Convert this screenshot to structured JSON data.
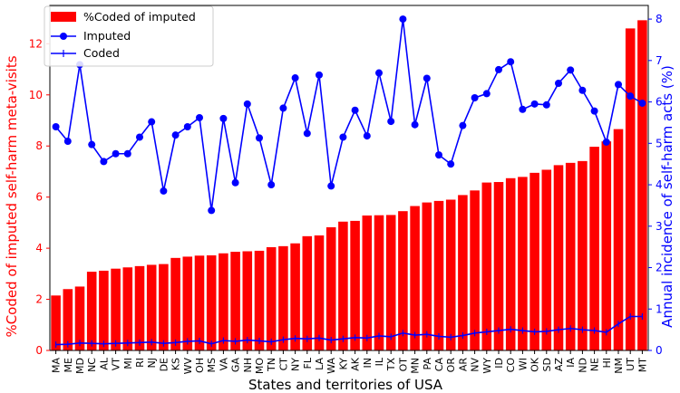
{
  "chart_data": {
    "type": "bar",
    "xlabel": "States and territories of USA",
    "ylabel_left": "%Coded of imputed self-harm meta-visits",
    "ylabel_right": "Annual incidence of self-harm acts (%)",
    "ylim_left": [
      0,
      13.5
    ],
    "ylim_right": [
      0,
      8.33
    ],
    "yticks_left": [
      0,
      2,
      4,
      6,
      8,
      10,
      12
    ],
    "yticks_right": [
      0,
      1,
      2,
      3,
      4,
      5,
      6,
      7,
      8
    ],
    "grid": false,
    "legend_position": "top-left",
    "colors": {
      "bar": "#ff0000",
      "line": "#0000ff",
      "left_axis": "#ff0000",
      "right_axis": "#0000ff"
    },
    "categories": [
      "MA",
      "ME",
      "MD",
      "NC",
      "AL",
      "VT",
      "MI",
      "RI",
      "NJ",
      "DE",
      "KS",
      "WV",
      "OH",
      "MS",
      "VA",
      "GA",
      "NH",
      "MO",
      "TN",
      "CT",
      "NY",
      "FL",
      "LA",
      "WA",
      "KY",
      "AK",
      "IN",
      "IL",
      "TX",
      "OT",
      "MN",
      "PA",
      "CA",
      "OR",
      "AR",
      "NV",
      "WY",
      "ID",
      "CO",
      "WI",
      "OK",
      "SD",
      "AZ",
      "IA",
      "ND",
      "NE",
      "HI",
      "NM",
      "UT",
      "MT"
    ],
    "series": [
      {
        "name": "%Coded of imputed",
        "kind": "bar",
        "axis": "left",
        "values": [
          2.15,
          2.4,
          2.5,
          3.08,
          3.12,
          3.2,
          3.25,
          3.3,
          3.35,
          3.38,
          3.62,
          3.67,
          3.71,
          3.72,
          3.8,
          3.86,
          3.88,
          3.9,
          4.04,
          4.08,
          4.19,
          4.47,
          4.5,
          4.82,
          5.04,
          5.07,
          5.28,
          5.29,
          5.3,
          5.45,
          5.65,
          5.79,
          5.85,
          5.9,
          6.08,
          6.26,
          6.57,
          6.59,
          6.74,
          6.79,
          6.95,
          7.07,
          7.25,
          7.34,
          7.41,
          7.97,
          8.18,
          8.66,
          12.6,
          12.92
        ]
      },
      {
        "name": "Imputed",
        "kind": "line-marker",
        "axis": "right",
        "values": [
          5.4,
          5.05,
          6.9,
          4.97,
          4.56,
          4.75,
          4.75,
          5.15,
          5.52,
          3.85,
          5.2,
          5.4,
          5.62,
          3.38,
          5.6,
          4.05,
          5.95,
          5.13,
          4.0,
          5.85,
          6.58,
          5.24,
          6.65,
          3.97,
          5.15,
          5.8,
          5.18,
          6.7,
          5.53,
          8.0,
          5.45,
          6.57,
          4.72,
          4.5,
          5.43,
          6.1,
          6.2,
          6.78,
          6.97,
          5.82,
          5.95,
          5.93,
          6.45,
          6.77,
          6.28,
          5.78,
          5.03,
          6.42,
          6.14,
          5.97
        ]
      },
      {
        "name": "Coded",
        "kind": "line-plus",
        "axis": "right",
        "values": [
          0.14,
          0.15,
          0.18,
          0.17,
          0.16,
          0.17,
          0.18,
          0.19,
          0.2,
          0.17,
          0.19,
          0.22,
          0.23,
          0.16,
          0.24,
          0.22,
          0.25,
          0.23,
          0.21,
          0.26,
          0.29,
          0.28,
          0.3,
          0.25,
          0.28,
          0.31,
          0.3,
          0.35,
          0.33,
          0.42,
          0.37,
          0.39,
          0.34,
          0.32,
          0.36,
          0.42,
          0.45,
          0.48,
          0.51,
          0.48,
          0.45,
          0.46,
          0.5,
          0.53,
          0.5,
          0.48,
          0.44,
          0.64,
          0.82,
          0.82
        ]
      }
    ]
  }
}
